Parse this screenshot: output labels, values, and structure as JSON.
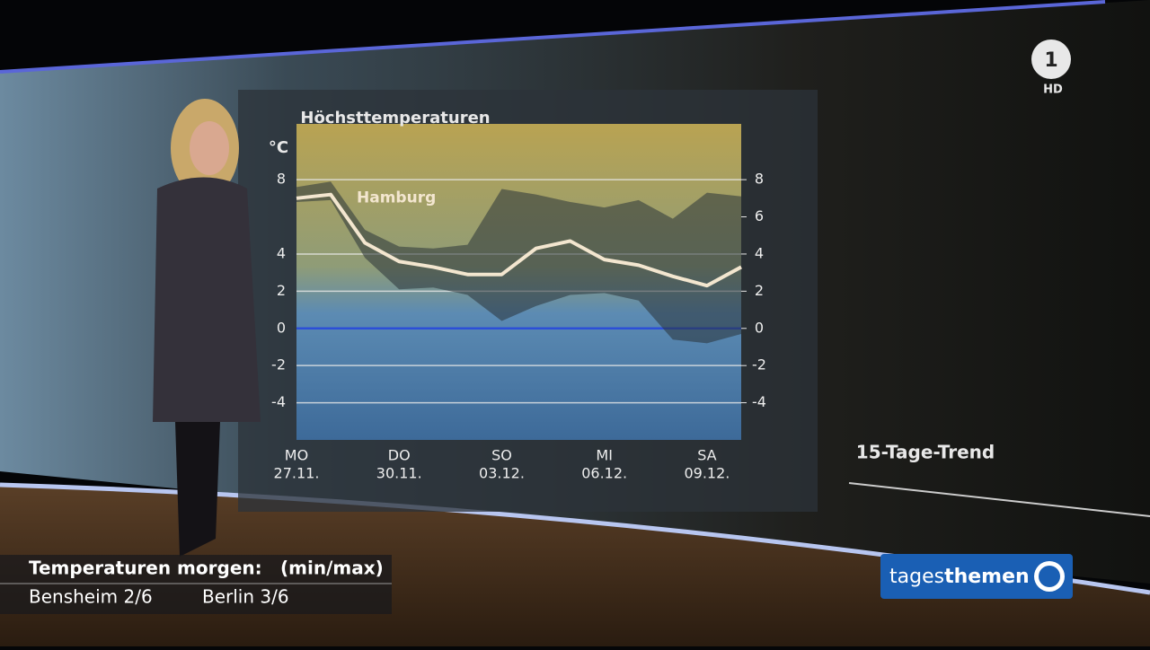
{
  "chart_data": {
    "type": "line",
    "title": "Höchsttemperaturen",
    "y_unit": "°C",
    "categories": [
      "27.11.",
      null,
      null,
      "30.11.",
      null,
      null,
      "03.12.",
      null,
      null,
      "06.12.",
      null,
      null,
      "09.12.",
      null
    ],
    "weekdays": [
      "MO",
      null,
      null,
      "DO",
      null,
      null,
      "SO",
      null,
      null,
      "MI",
      null,
      null,
      "SA",
      null
    ],
    "series": [
      {
        "name": "Hamburg",
        "color": "#f3e6cf",
        "values": [
          7.0,
          7.2,
          4.6,
          3.6,
          3.3,
          2.9,
          2.9,
          4.3,
          4.7,
          3.7,
          3.4,
          2.8,
          2.3,
          3.3
        ]
      }
    ],
    "band_high": [
      7.6,
      7.9,
      5.3,
      4.4,
      4.3,
      4.5,
      7.5,
      7.2,
      6.8,
      6.5,
      6.9,
      5.9,
      7.3,
      7.1
    ],
    "band_low": [
      6.8,
      6.9,
      3.8,
      2.1,
      2.2,
      1.8,
      0.4,
      1.2,
      1.8,
      1.9,
      1.5,
      -0.6,
      -0.8,
      -0.3
    ],
    "ylim": [
      -6,
      11
    ],
    "yticks": [
      -4,
      -2,
      0,
      2,
      4,
      8
    ],
    "y2ticks": [
      -4,
      -2,
      0,
      2,
      4,
      6,
      8
    ],
    "grid": true
  },
  "side_label": "15-Tage-Trend",
  "ticker": {
    "heading": "Temperaturen morgen:",
    "note": "(min/max)",
    "rows": [
      "Bensheim 2/6",
      "Berlin 3/6"
    ]
  },
  "logo": {
    "show_a": "tages",
    "show_b": "themen",
    "channel": "HD"
  }
}
